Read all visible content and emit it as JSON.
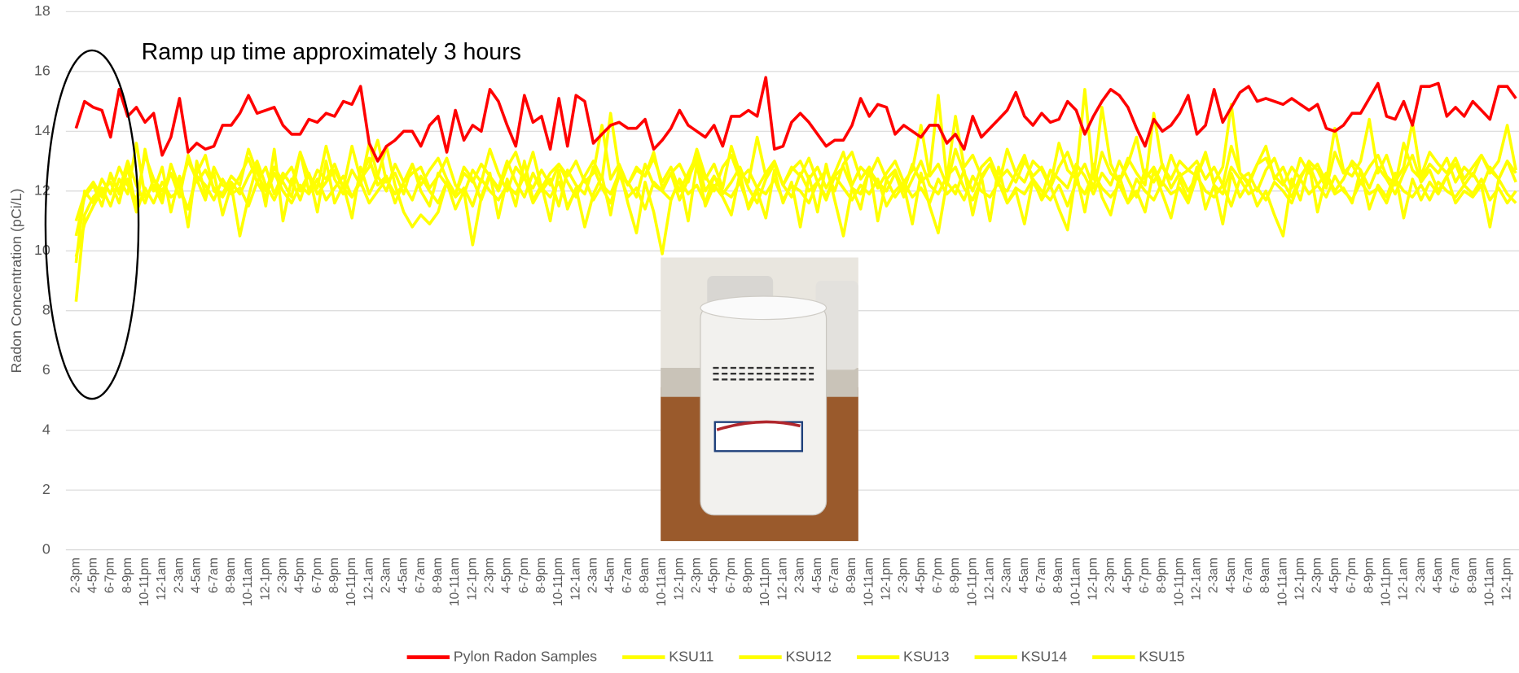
{
  "chart_data": {
    "type": "line",
    "ylabel": "Radon Concentration (pCi/L)",
    "annotations": [
      "Ramp up time approximately 3 hours"
    ],
    "ylim": [
      0,
      18
    ],
    "yticks": [
      0,
      2,
      4,
      6,
      8,
      10,
      12,
      14,
      16,
      18
    ],
    "grid": true,
    "legend": "bottom",
    "categories": [
      "2-3pm",
      null,
      "4-5pm",
      null,
      "6-7pm",
      null,
      "8-9pm",
      null,
      "10-11pm",
      null,
      "12-1am",
      null,
      "2-3am",
      null,
      "4-5am",
      null,
      "6-7am",
      null,
      "8-9am",
      null,
      "10-11am",
      null,
      "12-1pm",
      null,
      "2-3pm",
      null,
      "4-5pm",
      null,
      "6-7pm",
      null,
      "8-9pm",
      null,
      "10-11pm",
      null,
      "12-1am",
      null,
      "2-3am",
      null,
      "4-5am",
      null,
      "6-7am",
      null,
      "8-9am",
      null,
      "10-11am",
      null,
      "12-1pm",
      null,
      "2-3pm",
      null,
      "4-5pm",
      null,
      "6-7pm",
      null,
      "8-9pm",
      null,
      "10-11pm",
      null,
      "12-1am",
      null,
      "2-3am",
      null,
      "4-5am",
      null,
      "6-7am",
      null,
      "8-9am",
      null,
      "10-11am",
      null,
      "12-1pm",
      null,
      "2-3pm",
      null,
      "4-5pm",
      null,
      "6-7pm",
      null,
      "8-9pm",
      null,
      "10-11pm",
      null,
      "12-1am",
      null,
      "2-3am",
      null,
      "4-5am",
      null,
      "6-7am",
      null,
      "8-9am",
      null,
      "10-11am",
      null,
      "12-1pm",
      null,
      "2-3pm",
      null,
      "4-5pm",
      null,
      "6-7pm",
      null,
      "8-9pm",
      null,
      "10-11pm",
      null,
      "12-1am",
      null,
      "2-3am",
      null,
      "4-5am",
      null,
      "6-7am",
      null,
      "8-9am",
      null,
      "10-11am",
      null,
      "12-1pm",
      null,
      "2-3pm",
      null,
      "4-5pm",
      null,
      "6-7pm",
      null,
      "8-9pm",
      null,
      "10-11pm",
      null,
      "12-1am",
      null,
      "2-3am",
      null,
      "4-5am",
      null,
      "6-7am",
      null,
      "8-9am",
      null,
      "10-11am",
      null,
      "12-1pm",
      null,
      "2-3pm",
      null,
      "4-5pm",
      null,
      "6-7pm",
      null,
      "8-9pm",
      null,
      "10-11pm",
      null,
      "12-1am",
      null,
      "2-3am",
      null,
      "4-5am",
      null,
      "6-7am",
      null,
      "8-9am",
      null,
      "10-11am",
      null,
      "12-1pm",
      null
    ],
    "series": [
      {
        "name": "Pylon Radon Samples",
        "color": "#ff0000",
        "values": [
          14.1,
          15.0,
          14.8,
          14.7,
          13.8,
          15.4,
          14.5,
          14.8,
          14.3,
          14.6,
          13.2,
          13.8,
          15.1,
          13.3,
          13.6,
          13.4,
          13.5,
          14.2,
          14.2,
          14.6,
          15.2,
          14.6,
          14.7,
          14.8,
          14.2,
          13.9,
          13.9,
          14.4,
          14.3,
          14.6,
          14.5,
          15.0,
          14.9,
          15.5,
          13.6,
          13.0,
          13.5,
          13.7,
          14.0,
          14.0,
          13.5,
          14.2,
          14.5,
          13.3,
          14.7,
          13.7,
          14.2,
          14.0,
          15.4,
          15.0,
          14.2,
          13.5,
          15.2,
          14.3,
          14.5,
          13.4,
          15.1,
          13.5,
          15.2,
          15.0,
          13.6,
          13.9,
          14.2,
          14.3,
          14.1,
          14.1,
          14.4,
          13.4,
          13.7,
          14.1,
          14.7,
          14.2,
          14.0,
          13.8,
          14.2,
          13.5,
          14.5,
          14.5,
          14.7,
          14.5,
          15.8,
          13.4,
          13.5,
          14.3,
          14.6,
          14.3,
          13.9,
          13.5,
          13.7,
          13.7,
          14.2,
          15.1,
          14.5,
          14.9,
          14.8,
          13.9,
          14.2,
          14.0,
          13.8,
          14.2,
          14.2,
          13.6,
          13.9,
          13.4,
          14.5,
          13.8,
          14.1,
          14.4,
          14.7,
          15.3,
          14.5,
          14.2,
          14.6,
          14.3,
          14.4,
          15.0,
          14.7,
          13.9,
          14.5,
          15.0,
          15.4,
          15.2,
          14.8,
          14.1,
          13.5,
          14.4,
          14.0,
          14.2,
          14.6,
          15.2,
          13.9,
          14.2,
          15.4,
          14.3,
          14.8,
          15.3,
          15.5,
          15.0,
          15.1,
          15.0,
          14.9,
          15.1,
          14.9,
          14.7,
          14.9,
          14.1,
          14.0,
          14.2,
          14.6,
          14.6,
          15.1,
          15.6,
          14.5,
          14.4,
          15.0,
          14.2,
          15.5,
          15.5,
          15.6,
          14.5,
          14.8,
          14.5,
          15.0,
          14.7,
          14.4,
          15.5,
          15.5,
          15.1
        ]
      },
      {
        "name": "KSU11",
        "color": "#ffff00",
        "values": [
          8.3,
          11.2,
          11.8,
          12.1,
          11.5,
          12.4,
          11.9,
          13.6,
          11.8,
          12.2,
          11.6,
          12.9,
          12.1,
          11.4,
          12.6,
          13.2,
          12.0,
          11.8,
          12.3,
          11.9,
          12.5,
          13.0,
          12.2,
          11.7,
          12.4,
          12.8,
          12.0,
          12.6,
          11.9,
          12.3,
          12.7,
          12.1,
          11.8,
          12.4,
          13.1,
          12.2,
          12.5,
          11.6,
          12.3,
          12.9,
          12.0,
          11.5,
          12.6,
          12.2,
          11.9,
          12.8,
          12.4,
          11.7,
          12.5,
          12.1,
          13.0,
          12.3,
          11.8,
          12.6,
          12.0,
          12.4,
          11.5,
          12.7,
          12.2,
          11.9,
          12.8,
          12.1,
          11.6,
          12.5,
          12.3,
          11.8,
          12.9,
          12.2,
          12.0,
          12.6,
          11.7,
          12.4,
          13.1,
          12.0,
          12.5,
          11.9,
          12.3,
          12.8,
          12.1,
          11.6,
          12.4,
          12.9,
          12.2,
          11.8,
          12.6,
          12.0,
          12.3,
          11.7,
          12.5,
          12.8,
          12.1,
          11.9,
          12.7,
          12.3,
          12.0,
          12.6,
          11.8,
          12.4,
          13.0,
          12.2,
          11.9,
          12.5,
          12.8,
          12.1,
          11.7,
          12.4,
          12.9,
          12.2,
          12.0,
          12.6,
          13.2,
          12.3,
          11.8,
          12.7,
          12.4,
          12.1,
          12.9,
          12.5,
          11.9,
          12.6,
          12.2,
          13.0,
          12.4,
          11.8,
          12.7,
          12.3,
          12.9,
          12.1,
          12.6,
          12.0,
          12.5,
          13.3,
          12.2,
          11.9,
          12.8,
          12.4,
          12.6,
          12.0,
          12.7,
          13.1,
          12.3,
          11.8,
          12.5,
          12.9,
          12.2,
          12.6,
          12.0,
          12.4,
          13.0,
          12.7,
          12.1,
          12.8,
          12.4,
          11.9,
          12.6,
          13.2,
          12.3,
          12.7,
          12.0,
          12.5,
          12.9,
          12.2,
          12.6,
          12.1,
          12.8,
          12.4,
          13.0,
          12.3
        ]
      },
      {
        "name": "KSU12",
        "color": "#ffff00",
        "values": [
          9.8,
          10.9,
          11.5,
          12.0,
          12.3,
          11.6,
          12.8,
          11.4,
          13.4,
          12.0,
          12.8,
          11.3,
          12.5,
          10.8,
          13.0,
          11.9,
          12.6,
          11.2,
          12.2,
          10.5,
          11.8,
          12.9,
          11.5,
          13.4,
          11.0,
          12.4,
          11.7,
          12.6,
          11.3,
          13.0,
          11.6,
          12.2,
          11.1,
          12.8,
          11.9,
          12.5,
          13.5,
          12.2,
          11.3,
          10.8,
          11.2,
          10.9,
          11.3,
          12.3,
          11.4,
          12.0,
          10.2,
          11.8,
          12.6,
          11.1,
          12.4,
          11.5,
          13.0,
          11.7,
          12.2,
          11.0,
          12.7,
          11.4,
          12.1,
          10.8,
          11.9,
          12.5,
          11.2,
          12.8,
          11.6,
          10.6,
          12.3,
          11.3,
          9.9,
          11.7,
          12.4,
          11.0,
          12.9,
          11.5,
          12.2,
          11.8,
          11.2,
          12.6,
          11.4,
          12.0,
          11.1,
          12.7,
          11.6,
          12.3,
          10.8,
          12.5,
          11.3,
          12.9,
          11.7,
          10.5,
          12.1,
          11.4,
          12.8,
          11.0,
          12.4,
          11.8,
          12.2,
          10.9,
          12.6,
          11.5,
          10.6,
          12.3,
          11.9,
          12.7,
          11.2,
          12.5,
          11.0,
          12.8,
          11.6,
          12.0,
          10.9,
          12.4,
          11.7,
          12.2,
          11.4,
          10.7,
          12.6,
          11.3,
          12.9,
          11.8,
          11.2,
          12.5,
          11.6,
          12.0,
          11.3,
          12.7,
          11.9,
          11.1,
          12.4,
          11.7,
          12.8,
          11.4,
          12.2,
          10.9,
          12.6,
          11.8,
          12.3,
          11.5,
          12.0,
          11.2,
          10.5,
          12.4,
          11.7,
          12.9,
          11.3,
          12.5,
          11.9,
          12.1,
          11.6,
          12.7,
          11.4,
          12.2,
          11.8,
          12.6,
          11.1,
          12.4,
          11.7,
          12.3,
          11.9,
          12.5,
          11.6,
          12.0,
          11.8,
          12.2,
          10.8,
          12.4,
          11.9,
          11.6
        ]
      },
      {
        "name": "KSU13",
        "color": "#ffff00",
        "values": [
          11.0,
          11.9,
          12.3,
          11.8,
          12.5,
          12.0,
          13.0,
          12.2,
          11.6,
          12.4,
          12.0,
          12.6,
          11.8,
          13.2,
          12.3,
          12.7,
          12.1,
          11.9,
          12.5,
          12.2,
          13.4,
          12.6,
          12.0,
          12.8,
          12.3,
          11.8,
          13.3,
          12.5,
          12.1,
          13.5,
          12.4,
          11.9,
          12.7,
          12.2,
          13.6,
          12.5,
          12.0,
          12.9,
          12.3,
          12.6,
          12.8,
          12.1,
          12.5,
          13.1,
          12.2,
          11.9,
          12.7,
          12.3,
          13.4,
          12.6,
          12.0,
          12.8,
          12.4,
          13.3,
          12.1,
          12.6,
          12.9,
          12.3,
          11.8,
          12.5,
          13.0,
          12.4,
          14.6,
          12.7,
          12.2,
          12.8,
          12.5,
          13.3,
          12.1,
          12.6,
          12.9,
          12.3,
          13.4,
          12.5,
          12.0,
          12.8,
          13.2,
          12.4,
          12.7,
          12.1,
          12.6,
          13.0,
          12.2,
          12.8,
          12.5,
          13.1,
          12.3,
          12.7,
          12.0,
          12.9,
          13.3,
          12.4,
          12.8,
          12.1,
          12.6,
          13.0,
          12.3,
          12.7,
          14.2,
          12.5,
          12.9,
          12.2,
          13.4,
          12.6,
          12.0,
          12.8,
          13.1,
          12.4,
          12.7,
          12.3,
          13.0,
          12.5,
          12.8,
          12.2,
          13.6,
          12.7,
          12.4,
          12.9,
          12.1,
          13.3,
          12.6,
          12.3,
          12.9,
          13.8,
          12.4,
          12.8,
          12.2,
          13.2,
          12.5,
          12.7,
          13.0,
          12.4,
          12.8,
          12.2,
          13.5,
          12.6,
          12.3,
          12.9,
          13.1,
          12.5,
          12.2,
          12.8,
          12.4,
          13.0,
          12.7,
          12.1,
          13.3,
          12.6,
          12.9,
          12.3,
          12.8,
          13.2,
          12.5,
          12.2,
          13.6,
          12.7,
          12.4,
          12.9,
          12.6,
          13.1,
          12.3,
          12.8,
          12.5,
          13.2,
          12.7,
          12.4,
          13.0,
          12.6
        ]
      },
      {
        "name": "KSU14",
        "color": "#ffff00",
        "values": [
          9.6,
          12.0,
          11.6,
          12.4,
          11.9,
          12.8,
          12.2,
          11.7,
          13.2,
          12.4,
          11.8,
          12.6,
          12.1,
          13.0,
          12.4,
          11.7,
          12.8,
          12.2,
          12.0,
          12.5,
          13.1,
          12.3,
          12.8,
          11.9,
          12.6,
          12.2,
          13.3,
          12.0,
          12.7,
          12.4,
          12.9,
          12.1,
          13.5,
          12.4,
          12.8,
          13.7,
          12.3,
          12.6,
          11.9,
          12.9,
          12.2,
          12.7,
          13.1,
          12.4,
          11.9,
          12.6,
          12.3,
          12.9,
          12.5,
          12.0,
          12.8,
          13.3,
          12.4,
          12.1,
          12.7,
          12.2,
          12.9,
          12.5,
          13.0,
          12.3,
          12.6,
          14.2,
          12.4,
          12.9,
          12.2,
          12.7,
          12.5,
          13.1,
          12.3,
          12.8,
          12.0,
          12.6,
          13.2,
          12.4,
          12.9,
          12.1,
          13.5,
          12.6,
          12.3,
          13.8,
          12.5,
          12.9,
          12.2,
          12.7,
          13.0,
          12.4,
          12.8,
          12.1,
          12.6,
          13.3,
          12.2,
          12.8,
          12.5,
          13.1,
          12.4,
          12.7,
          12.0,
          12.9,
          12.3,
          12.6,
          15.2,
          12.4,
          14.5,
          12.8,
          13.2,
          12.5,
          12.9,
          12.2,
          13.4,
          12.6,
          12.3,
          13.0,
          12.7,
          12.1,
          12.8,
          13.3,
          12.5,
          15.4,
          12.4,
          14.8,
          12.9,
          12.3,
          13.1,
          12.6,
          12.2,
          14.6,
          12.8,
          12.4,
          13.0,
          12.7,
          12.5,
          13.2,
          12.3,
          12.8,
          14.9,
          12.6,
          12.2,
          12.9,
          13.5,
          12.4,
          12.8,
          12.1,
          13.1,
          12.6,
          12.9,
          12.3,
          14.1,
          12.7,
          12.5,
          13.0,
          14.4,
          12.6,
          13.2,
          12.3,
          12.8,
          14.3,
          12.5,
          13.3,
          12.9,
          12.6,
          13.1,
          12.4,
          12.8,
          13.2,
          12.6,
          13.0,
          14.2,
          12.7
        ]
      },
      {
        "name": "KSU15",
        "color": "#ffff00",
        "values": [
          10.5,
          11.8,
          12.2,
          11.5,
          12.6,
          11.9,
          12.4,
          11.3,
          12.1,
          11.6,
          12.3,
          11.8,
          12.0,
          11.4,
          12.5,
          12.2,
          11.7,
          12.4,
          11.9,
          12.1,
          11.5,
          12.3,
          11.8,
          12.6,
          12.0,
          11.6,
          12.2,
          11.9,
          12.4,
          11.7,
          12.1,
          12.5,
          11.8,
          12.3,
          11.6,
          12.0,
          12.4,
          11.9,
          12.2,
          11.7,
          12.5,
          12.0,
          11.6,
          12.3,
          11.8,
          12.1,
          11.5,
          12.4,
          12.0,
          11.7,
          12.2,
          11.9,
          12.5,
          11.6,
          12.1,
          11.8,
          12.3,
          11.5,
          12.0,
          12.4,
          11.7,
          12.2,
          11.9,
          12.6,
          11.8,
          12.1,
          11.4,
          12.3,
          12.0,
          11.7,
          12.4,
          11.9,
          12.2,
          11.6,
          12.5,
          12.0,
          11.8,
          12.3,
          11.5,
          12.1,
          11.9,
          12.4,
          11.7,
          12.2,
          12.0,
          11.6,
          12.3,
          11.8,
          12.5,
          12.1,
          11.7,
          12.2,
          11.9,
          12.4,
          11.5,
          12.0,
          12.3,
          11.8,
          12.1,
          11.6,
          12.4,
          11.9,
          12.2,
          11.7,
          12.5,
          12.0,
          11.8,
          12.3,
          11.6,
          12.1,
          11.9,
          12.4,
          12.0,
          11.7,
          12.2,
          11.5,
          12.3,
          11.9,
          12.6,
          12.1,
          11.8,
          12.2,
          11.6,
          12.4,
          12.0,
          11.7,
          12.3,
          11.9,
          12.1,
          11.6,
          12.5,
          12.0,
          11.8,
          12.2,
          11.5,
          12.4,
          11.9,
          12.1,
          11.7,
          12.3,
          12.0,
          11.6,
          12.4,
          11.9,
          12.2,
          11.8,
          12.5,
          12.0,
          11.7,
          12.3,
          11.9,
          12.1,
          11.6,
          12.4,
          12.0,
          11.8,
          12.2,
          11.7,
          12.3,
          12.0,
          11.8,
          12.2,
          11.9,
          12.4,
          11.7,
          12.1,
          11.6,
          12.0
        ]
      }
    ]
  }
}
